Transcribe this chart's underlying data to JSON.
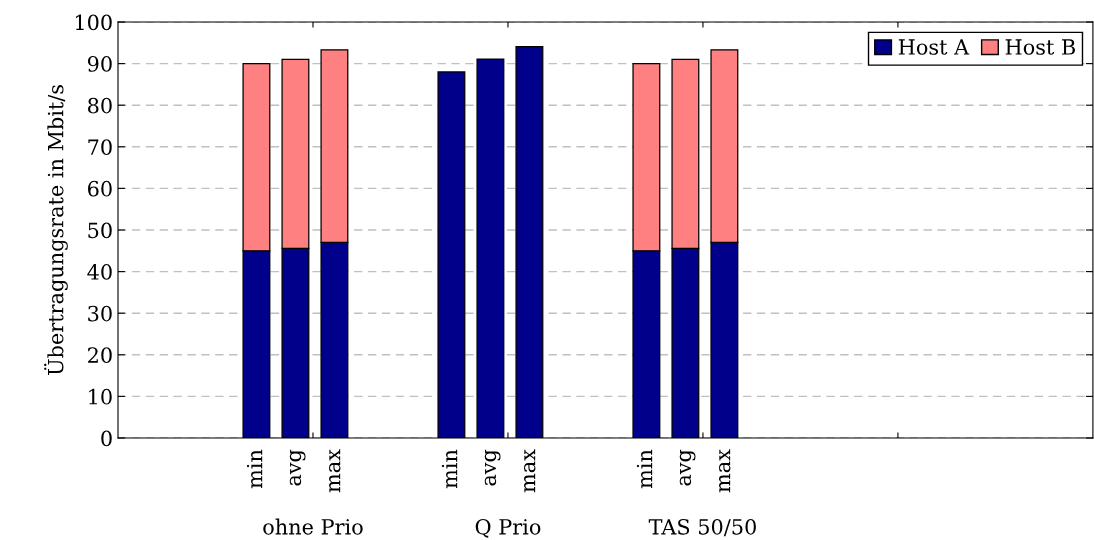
{
  "chart_data": {
    "type": "bar",
    "stacked": true,
    "ylabel": "Übertragungsrate in Mbit/s",
    "categories": [
      "min",
      "avg",
      "max",
      "min",
      "avg",
      "max",
      "min",
      "avg",
      "max"
    ],
    "series": [
      {
        "name": "Host A",
        "color": "#00008b",
        "values": [
          45,
          45.6,
          47,
          88,
          91.1,
          94.1,
          45,
          45.6,
          47
        ]
      },
      {
        "name": "Host B",
        "color": "#ff8080",
        "values": [
          45,
          45.4,
          46.3,
          null,
          null,
          null,
          45,
          45.4,
          46.3
        ]
      }
    ],
    "ylim": [
      0,
      100
    ],
    "yticks": [
      0,
      10,
      20,
      30,
      40,
      50,
      60,
      70,
      80,
      90,
      100
    ],
    "annotations": [
      "ohne Prio",
      "Q Prio",
      "TAS 50/50"
    ],
    "grid": "y",
    "legend": "top right"
  }
}
